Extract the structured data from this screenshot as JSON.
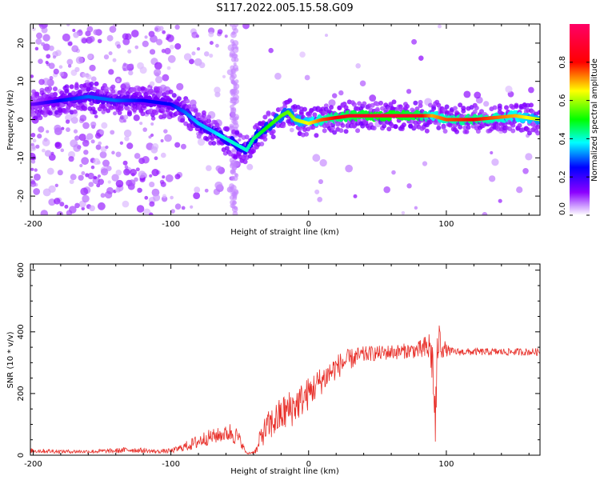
{
  "title": "S117.2022.005.15.58.G09",
  "chart_data": [
    {
      "type": "heatmap",
      "xlabel": "Height of straight line (km)",
      "ylabel": "Frequency (Hz)",
      "xlim": [
        -202,
        168
      ],
      "ylim": [
        -25,
        25
      ],
      "xticks": [
        -200,
        -100,
        0,
        100
      ],
      "yticks": [
        -20,
        -10,
        0,
        10,
        20
      ],
      "colorbar": {
        "label": "Normalized spectral amplitude",
        "range": [
          0,
          1
        ],
        "ticks": [
          "0.0",
          "0.2",
          "0.4",
          "0.6",
          "0.8"
        ],
        "colors": [
          "#ffffff",
          "#8b00ff",
          "#0000ff",
          "#00ffff",
          "#00ff00",
          "#ffff00",
          "#ff0000",
          "#ff0066"
        ]
      },
      "ridge": {
        "x": [
          -200,
          -180,
          -160,
          -140,
          -120,
          -100,
          -90,
          -80,
          -70,
          -60,
          -50,
          -45,
          -40,
          -30,
          -20,
          -15,
          -10,
          0,
          10,
          30,
          60,
          80,
          90,
          100,
          120,
          150,
          168
        ],
        "y": [
          4,
          5,
          6,
          5,
          5,
          4,
          2,
          -1,
          -3,
          -5,
          -7,
          -8,
          -5,
          -2,
          1,
          2,
          0,
          -1,
          0,
          1,
          1,
          1,
          1,
          0,
          0,
          1,
          0
        ],
        "amplitude": [
          0.15,
          0.25,
          0.3,
          0.3,
          0.25,
          0.25,
          0.3,
          0.35,
          0.35,
          0.4,
          0.4,
          0.4,
          0.45,
          0.5,
          0.55,
          0.55,
          0.6,
          0.65,
          0.75,
          0.85,
          0.9,
          0.85,
          0.7,
          0.75,
          0.8,
          0.7,
          0.6
        ]
      }
    },
    {
      "type": "line",
      "xlabel": "Height of straight line (km)",
      "ylabel": "SNR (10 * v/v)",
      "xlim": [
        -202,
        168
      ],
      "ylim": [
        0,
        620
      ],
      "xticks": [
        -200,
        -100,
        0,
        100
      ],
      "yticks": [
        0,
        200,
        400,
        600
      ],
      "series": [
        {
          "color": "#e8302a",
          "x": [
            -202,
            -180,
            -160,
            -140,
            -130,
            -120,
            -110,
            -100,
            -95,
            -90,
            -85,
            -80,
            -75,
            -70,
            -65,
            -60,
            -55,
            -50,
            -45,
            -40,
            -37,
            -35,
            -30,
            -25,
            -20,
            -15,
            -10,
            -5,
            0,
            5,
            10,
            15,
            20,
            25,
            30,
            35,
            40,
            45,
            50,
            55,
            60,
            65,
            70,
            75,
            80,
            85,
            88,
            90,
            92,
            94,
            96,
            100,
            105,
            110,
            120,
            130,
            140,
            150,
            160,
            168
          ],
          "y": [
            15,
            12,
            12,
            14,
            18,
            15,
            12,
            14,
            20,
            28,
            35,
            45,
            55,
            60,
            65,
            70,
            75,
            50,
            5,
            10,
            20,
            60,
            90,
            110,
            130,
            145,
            160,
            180,
            200,
            225,
            245,
            265,
            285,
            300,
            310,
            320,
            325,
            330,
            330,
            332,
            335,
            335,
            338,
            340,
            340,
            345,
            350,
            300,
            100,
            380,
            360,
            340,
            335,
            335,
            335,
            335,
            335,
            335,
            335,
            335
          ],
          "noise": [
            8,
            6,
            6,
            8,
            10,
            8,
            6,
            8,
            10,
            15,
            20,
            25,
            25,
            25,
            25,
            25,
            40,
            20,
            3,
            6,
            15,
            35,
            50,
            55,
            60,
            65,
            60,
            55,
            55,
            50,
            45,
            45,
            40,
            40,
            35,
            30,
            28,
            25,
            25,
            25,
            25,
            25,
            25,
            25,
            30,
            45,
            60,
            80,
            120,
            70,
            50,
            20,
            12,
            12,
            12,
            12,
            12,
            12,
            12,
            12
          ]
        }
      ]
    }
  ]
}
